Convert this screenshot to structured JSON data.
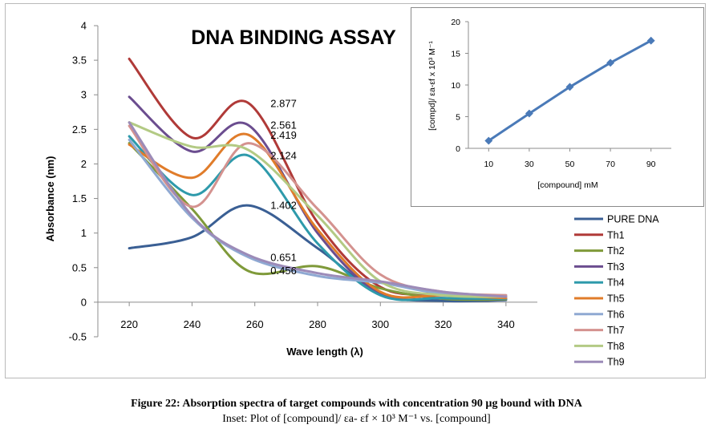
{
  "chart_data": [
    {
      "type": "line",
      "title": "DNA BINDING ASSAY",
      "xlabel": "Wave length (λ)",
      "ylabel": "Absorbance (nm)",
      "xlim": [
        210,
        350
      ],
      "ylim": [
        -0.5,
        4
      ],
      "x_ticks": [
        "220",
        "240",
        "260",
        "280",
        "300",
        "320",
        "340"
      ],
      "y_ticks": [
        "4",
        "3.5",
        "3",
        "2.5",
        "2",
        "1.5",
        "1",
        "0.5",
        "0",
        "-0.5"
      ],
      "grid": false,
      "legend_position": "right",
      "x": [
        220,
        240,
        258,
        280,
        300,
        320,
        340
      ],
      "series": [
        {
          "name": "PURE DNA",
          "color": "#3a5f94",
          "values": [
            0.78,
            0.94,
            1.4,
            0.78,
            0.12,
            0.02,
            0.03
          ]
        },
        {
          "name": "Th1",
          "color": "#b03a38",
          "values": [
            3.52,
            2.38,
            2.88,
            1.15,
            0.22,
            0.12,
            0.08
          ]
        },
        {
          "name": "Th2",
          "color": "#7f9a3a",
          "values": [
            2.3,
            1.35,
            0.45,
            0.52,
            0.2,
            0.05,
            0.04
          ]
        },
        {
          "name": "Th3",
          "color": "#6b4d8f",
          "values": [
            2.97,
            2.18,
            2.56,
            1.0,
            0.12,
            0.06,
            0.05
          ]
        },
        {
          "name": "Th4",
          "color": "#2e9aab",
          "values": [
            2.4,
            1.55,
            2.12,
            0.85,
            0.1,
            0.06,
            0.05
          ]
        },
        {
          "name": "Th5",
          "color": "#e07c2a",
          "values": [
            2.28,
            1.8,
            2.42,
            1.05,
            0.15,
            0.1,
            0.06
          ]
        },
        {
          "name": "Th6",
          "color": "#8fa9d2",
          "values": [
            2.35,
            1.22,
            0.65,
            0.38,
            0.28,
            0.12,
            0.1
          ]
        },
        {
          "name": "Th7",
          "color": "#d4928f",
          "values": [
            2.55,
            1.38,
            2.3,
            1.35,
            0.4,
            0.15,
            0.1
          ]
        },
        {
          "name": "Th8",
          "color": "#b3ca84",
          "values": [
            2.6,
            2.25,
            2.2,
            1.25,
            0.3,
            0.1,
            0.08
          ]
        },
        {
          "name": "Th9",
          "color": "#9c8bb8",
          "values": [
            2.6,
            1.25,
            0.68,
            0.42,
            0.3,
            0.15,
            0.08
          ]
        }
      ],
      "data_labels": [
        {
          "text": "2.877",
          "x": 265,
          "y": 2.877
        },
        {
          "text": "2.561",
          "x": 265,
          "y": 2.561
        },
        {
          "text": "2.419",
          "x": 265,
          "y": 2.419
        },
        {
          "text": "2.124",
          "x": 265,
          "y": 2.124
        },
        {
          "text": "1.402",
          "x": 265,
          "y": 1.402
        },
        {
          "text": "0.651",
          "x": 265,
          "y": 0.651
        },
        {
          "text": "0.456",
          "x": 265,
          "y": 0.456
        }
      ]
    },
    {
      "type": "line",
      "title": "",
      "xlabel": "[compound] mM",
      "ylabel": "[compd]/ εa-εf x 10³ M⁻¹",
      "xlim": [
        0,
        100
      ],
      "ylim": [
        0,
        20
      ],
      "x_ticks": [
        "10",
        "30",
        "50",
        "70",
        "90"
      ],
      "y_ticks": [
        "0",
        "5",
        "10",
        "15",
        "20"
      ],
      "series": [
        {
          "name": "",
          "color": "#4a7ab8",
          "x": [
            10,
            30,
            50,
            70,
            90
          ],
          "values": [
            1.2,
            5.5,
            9.7,
            13.5,
            17.0
          ]
        }
      ]
    }
  ],
  "caption": {
    "main": "Figure 22: Absorption spectra of target compounds with concentration 90 µg bound with DNA",
    "inset": "Inset: Plot of [compound]/ εa- εf × 10³ M⁻¹ vs. [compound]"
  }
}
